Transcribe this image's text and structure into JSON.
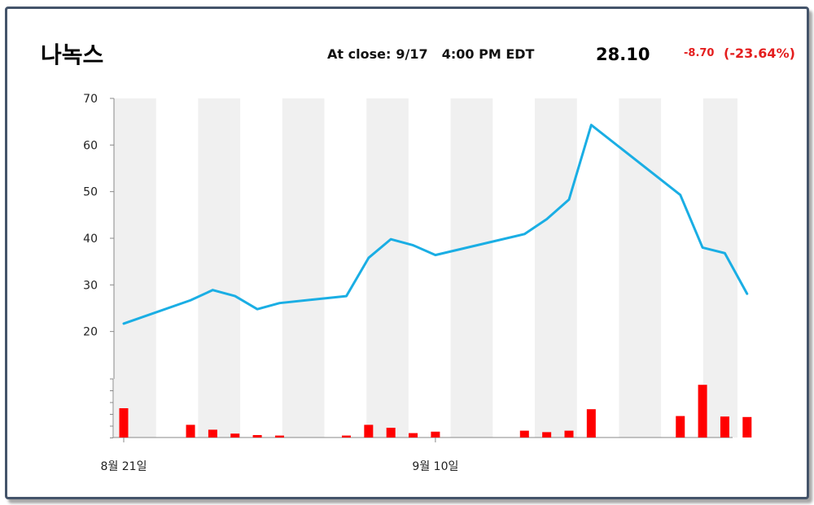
{
  "header": {
    "name": "나녹스",
    "at_close_label": "At close:",
    "date": "9/17",
    "time": "4:00 PM EDT",
    "price": "28.10",
    "change": "-8.70",
    "change_pct": "(-23.64%)",
    "up_color": "#e41e1e"
  },
  "chart_data": {
    "type": "line",
    "ylim": [
      20,
      70
    ],
    "yticks": [
      20,
      30,
      40,
      50,
      60,
      70
    ],
    "xticks": [
      {
        "label": "8월 21일",
        "index": 0
      },
      {
        "label": "9월 10일",
        "index": 14
      }
    ],
    "price_color": "#1aaee4",
    "volume_color": "#ff0000",
    "grid": true,
    "price": [
      21.7,
      26.7,
      28.9,
      27.6,
      24.8,
      26.1,
      27.6,
      35.8,
      39.8,
      38.5,
      36.4,
      40.9,
      44.1,
      48.3,
      64.3,
      49.3,
      38.0,
      36.8,
      28.1
    ],
    "price_x": [
      0,
      3,
      4,
      5,
      6,
      7,
      10,
      11,
      12,
      13,
      14,
      18,
      19,
      20,
      21,
      25,
      26,
      27,
      28
    ],
    "volume": [
      {
        "x": 0,
        "v": 6
      },
      {
        "x": 3,
        "v": 2.6
      },
      {
        "x": 4,
        "v": 1.6
      },
      {
        "x": 5,
        "v": 0.8
      },
      {
        "x": 6,
        "v": 0.5
      },
      {
        "x": 7,
        "v": 0.4
      },
      {
        "x": 10,
        "v": 0.4
      },
      {
        "x": 11,
        "v": 2.6
      },
      {
        "x": 12,
        "v": 2.0
      },
      {
        "x": 13,
        "v": 0.9
      },
      {
        "x": 14,
        "v": 1.2
      },
      {
        "x": 18,
        "v": 1.4
      },
      {
        "x": 19,
        "v": 1.1
      },
      {
        "x": 20,
        "v": 1.4
      },
      {
        "x": 21,
        "v": 5.8
      },
      {
        "x": 25,
        "v": 4.4
      },
      {
        "x": 26,
        "v": 10.8
      },
      {
        "x": 27,
        "v": 4.3
      },
      {
        "x": 28,
        "v": 4.2
      }
    ],
    "volume_max": 12
  }
}
